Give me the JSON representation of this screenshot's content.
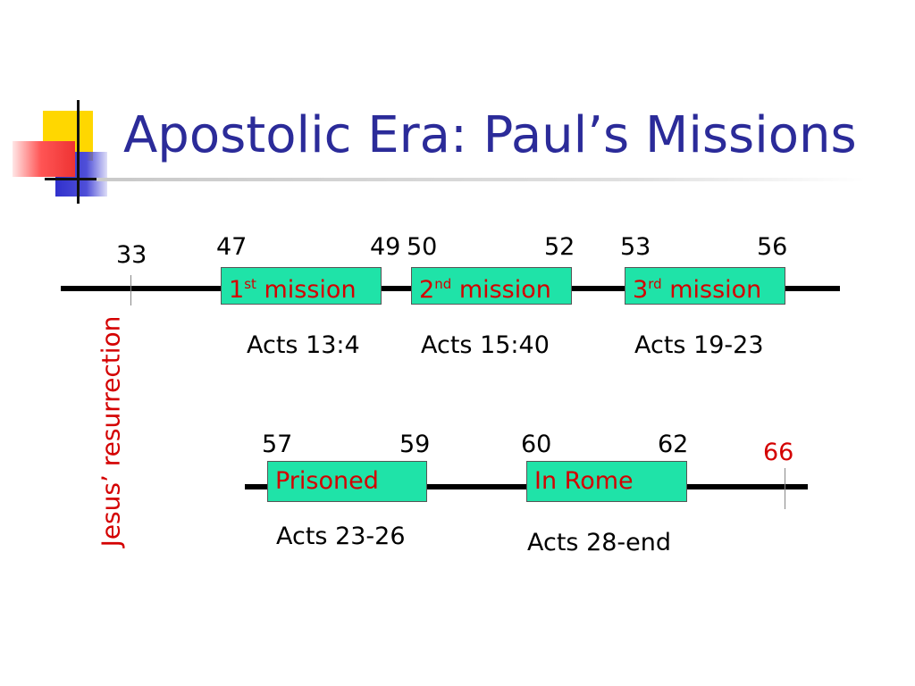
{
  "slide": {
    "title": "Apostolic Era: Paul’s Missions"
  },
  "timeline_top": {
    "start_year": "33",
    "start_label": "Jesus’ resurrection",
    "missions": [
      {
        "ordinal": "1",
        "suffix": "st",
        "word": "mission",
        "start": "47",
        "end": "49",
        "reference": "Acts 13:4"
      },
      {
        "ordinal": "2",
        "suffix": "nd",
        "word": "mission",
        "start": "50",
        "end": "52",
        "reference": "Acts 15:40"
      },
      {
        "ordinal": "3",
        "suffix": "rd",
        "word": "mission",
        "start": "53",
        "end": "56",
        "reference": "Acts 19-23"
      }
    ]
  },
  "timeline_bottom": {
    "periods": [
      {
        "label": "Prisoned",
        "start": "57",
        "end": "59",
        "reference": "Acts 23-26"
      },
      {
        "label": "In Rome",
        "start": "60",
        "end": "62",
        "reference": "Acts 28-end"
      }
    ],
    "end_year": "66"
  },
  "colors": {
    "title": "#2b2b99",
    "box_fill": "#1fe3a8",
    "highlight_text": "#d40000",
    "line": "#000000"
  }
}
